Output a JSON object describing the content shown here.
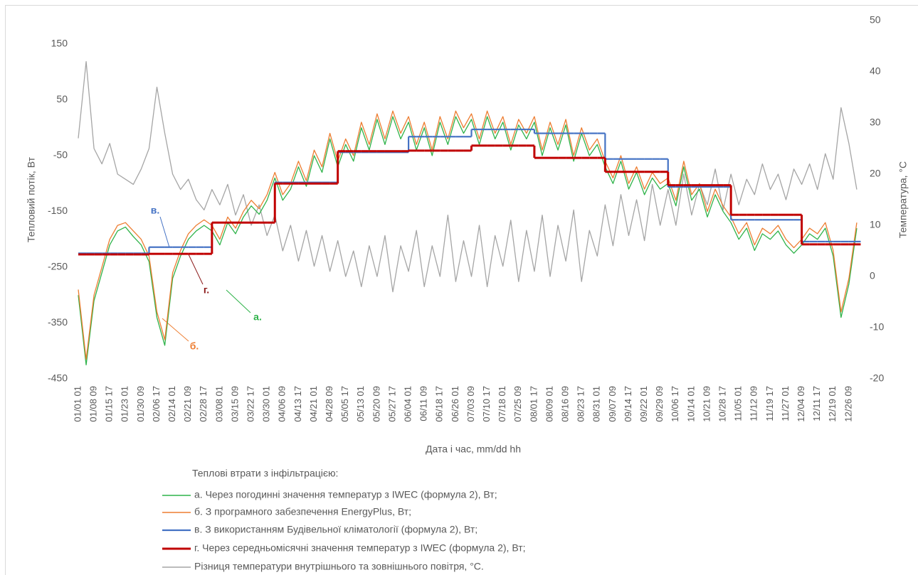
{
  "chart_data": {
    "type": "line",
    "xlabel": "Дата і час, mm/dd hh",
    "ylabel": "Тепловий потік, Вт",
    "y2label": "Температура, °С",
    "legend_title": "Теплові втрати з інфільтрацією:",
    "categories": [
      "01/01 01",
      null,
      "01/08 09",
      null,
      "01/15 17",
      null,
      "01/23 01",
      null,
      "01/30 09",
      null,
      "02/06 17",
      null,
      "02/14 01",
      null,
      "02/21 09",
      null,
      "02/28 17",
      null,
      "03/08 01",
      null,
      "03/15 09",
      null,
      "03/22 17",
      null,
      "03/30 01",
      null,
      "04/06 09",
      null,
      "04/13 17",
      null,
      "04/21 01",
      null,
      "04/28 09",
      null,
      "05/05 17",
      null,
      "05/13 01",
      null,
      "05/20 09",
      null,
      "05/27 17",
      null,
      "06/04 01",
      null,
      "06/11 09",
      null,
      "06/18 17",
      null,
      "06/26 01",
      null,
      "07/03 09",
      null,
      "07/10 17",
      null,
      "07/18 01",
      null,
      "07/25 09",
      null,
      "08/01 17",
      null,
      "08/09 01",
      null,
      "08/16 09",
      null,
      "08/23 17",
      null,
      "08/31 01",
      null,
      "09/07 09",
      null,
      "09/14 17",
      null,
      "09/22 01",
      null,
      "09/29 09",
      null,
      "10/06 17",
      null,
      "10/14 01",
      null,
      "10/21 09",
      null,
      "10/28 17",
      null,
      "11/05 01",
      null,
      "11/12 09",
      null,
      "11/19 17",
      null,
      "11/27 01",
      null,
      "12/04 09",
      null,
      "12/11 17",
      null,
      "12/19 01",
      null,
      "12/26 09",
      null
    ],
    "ylim": [
      -450,
      192
    ],
    "yticks": [
      -450,
      -350,
      -250,
      -150,
      -50,
      50,
      150
    ],
    "y2lim": [
      -20,
      50
    ],
    "y2ticks": [
      -20,
      -10,
      0,
      10,
      20,
      30,
      40,
      50
    ],
    "series": [
      {
        "name": "а. Через погодинні значення температур з IWEC (формула 2), Вт;",
        "color": "#2fb34a",
        "values": [
          -300,
          -425,
          -310,
          -260,
          -210,
          -185,
          -178,
          -195,
          -210,
          -240,
          -340,
          -390,
          -270,
          -230,
          -200,
          -185,
          -175,
          -185,
          -210,
          -170,
          -190,
          -160,
          -140,
          -155,
          -130,
          -90,
          -130,
          -110,
          -70,
          -105,
          -50,
          -80,
          -20,
          -70,
          -30,
          -60,
          0,
          -40,
          15,
          -30,
          20,
          -20,
          10,
          -40,
          0,
          -50,
          10,
          -30,
          20,
          -10,
          15,
          -30,
          20,
          -20,
          10,
          -40,
          5,
          -20,
          10,
          -50,
          0,
          -40,
          5,
          -60,
          -10,
          -50,
          -30,
          -70,
          -100,
          -60,
          -110,
          -80,
          -120,
          -90,
          -110,
          -100,
          -140,
          -70,
          -130,
          -110,
          -160,
          -120,
          -150,
          -170,
          -200,
          -180,
          -220,
          -190,
          -200,
          -185,
          -210,
          -225,
          -210,
          -190,
          -200,
          -180,
          -230,
          -340,
          -280,
          -180
        ]
      },
      {
        "name": "б. З програмного забезпечення EnergyPlus, Вт;",
        "color": "#ed7d31",
        "values": [
          -290,
          -415,
          -300,
          -250,
          -200,
          -175,
          -170,
          -185,
          -200,
          -230,
          -330,
          -380,
          -260,
          -220,
          -190,
          -175,
          -165,
          -175,
          -200,
          -160,
          -180,
          -150,
          -130,
          -145,
          -120,
          -80,
          -120,
          -100,
          -60,
          -95,
          -40,
          -70,
          -10,
          -60,
          -20,
          -50,
          10,
          -30,
          25,
          -20,
          30,
          -10,
          20,
          -30,
          10,
          -40,
          20,
          -20,
          30,
          0,
          25,
          -20,
          30,
          -10,
          20,
          -30,
          15,
          -10,
          20,
          -40,
          10,
          -30,
          15,
          -50,
          0,
          -40,
          -20,
          -60,
          -90,
          -50,
          -100,
          -70,
          -110,
          -80,
          -100,
          -90,
          -130,
          -60,
          -120,
          -100,
          -150,
          -110,
          -140,
          -160,
          -190,
          -170,
          -210,
          -180,
          -190,
          -175,
          -200,
          -215,
          -200,
          -180,
          -190,
          -170,
          -220,
          -330,
          -270,
          -170
        ]
      },
      {
        "name": "в. З використанням Будівельної кліматології (формула 2), Вт;",
        "color": "#4472c4",
        "step": true,
        "values": [
          -225,
          -225,
          -225,
          -225,
          -225,
          -225,
          -225,
          -225,
          -225,
          -214,
          -214,
          -214,
          -214,
          -214,
          -214,
          -214,
          -214,
          -170,
          -170,
          -170,
          -170,
          -170,
          -170,
          -170,
          -170,
          -98,
          -98,
          -98,
          -98,
          -98,
          -98,
          -98,
          -98,
          -44,
          -44,
          -44,
          -44,
          -44,
          -44,
          -44,
          -44,
          -44,
          -16,
          -16,
          -16,
          -16,
          -16,
          -16,
          -16,
          -16,
          -3,
          -3,
          -3,
          -3,
          -3,
          -3,
          -3,
          -3,
          -10,
          -10,
          -10,
          -10,
          -10,
          -10,
          -10,
          -10,
          -10,
          -56,
          -56,
          -56,
          -56,
          -56,
          -56,
          -56,
          -56,
          -106,
          -106,
          -106,
          -106,
          -106,
          -106,
          -106,
          -106,
          -165,
          -165,
          -165,
          -165,
          -165,
          -165,
          -165,
          -165,
          -165,
          -204,
          -204,
          -204,
          -204,
          -204,
          -204,
          -204,
          -204
        ]
      },
      {
        "name": "г. Через середньомісячні значення температур з IWEC (формула 2), Вт;",
        "color": "#c00000",
        "step": true,
        "values": [
          -227,
          -227,
          -227,
          -227,
          -227,
          -227,
          -227,
          -227,
          -227,
          -226,
          -226,
          -226,
          -226,
          -226,
          -226,
          -226,
          -226,
          -170,
          -170,
          -170,
          -170,
          -170,
          -170,
          -170,
          -170,
          -100,
          -100,
          -100,
          -100,
          -100,
          -100,
          -100,
          -100,
          -42,
          -42,
          -42,
          -42,
          -42,
          -42,
          -42,
          -42,
          -42,
          -41,
          -41,
          -41,
          -41,
          -41,
          -41,
          -41,
          -41,
          -32,
          -32,
          -32,
          -32,
          -32,
          -32,
          -32,
          -32,
          -54,
          -54,
          -54,
          -54,
          -54,
          -54,
          -54,
          -54,
          -54,
          -79,
          -79,
          -79,
          -79,
          -79,
          -79,
          -79,
          -79,
          -103,
          -103,
          -103,
          -103,
          -103,
          -103,
          -103,
          -103,
          -156,
          -156,
          -156,
          -156,
          -156,
          -156,
          -156,
          -156,
          -156,
          -209,
          -209,
          -209,
          -209,
          -209,
          -209,
          -209,
          -209
        ]
      },
      {
        "name": "Різниця температури внутрішнього та зовнішнього повітря, °С.",
        "color": "#a5a5a5",
        "axis": "y2",
        "values": [
          27,
          42,
          25,
          22,
          26,
          20,
          19,
          18,
          21,
          25,
          37,
          28,
          20,
          17,
          19,
          15,
          13,
          17,
          14,
          18,
          12,
          16,
          10,
          14,
          8,
          12,
          5,
          10,
          3,
          9,
          2,
          8,
          1,
          7,
          0,
          5,
          -2,
          6,
          0,
          8,
          -3,
          6,
          1,
          9,
          -2,
          6,
          0,
          12,
          -1,
          7,
          0,
          10,
          -2,
          8,
          2,
          11,
          -1,
          9,
          1,
          12,
          0,
          10,
          3,
          13,
          -1,
          9,
          4,
          14,
          6,
          16,
          8,
          15,
          7,
          18,
          10,
          17,
          10,
          20,
          12,
          18,
          14,
          21,
          13,
          20,
          14,
          19,
          16,
          22,
          17,
          20,
          15,
          21,
          18,
          22,
          17,
          24,
          19,
          33,
          26,
          17
        ]
      }
    ],
    "annotations": [
      {
        "text": "в.",
        "color": "#4472c4"
      },
      {
        "text": "г.",
        "color": "#8b1a1a"
      },
      {
        "text": "а.",
        "color": "#2fb34a"
      },
      {
        "text": "б.",
        "color": "#ed7d31"
      }
    ]
  }
}
